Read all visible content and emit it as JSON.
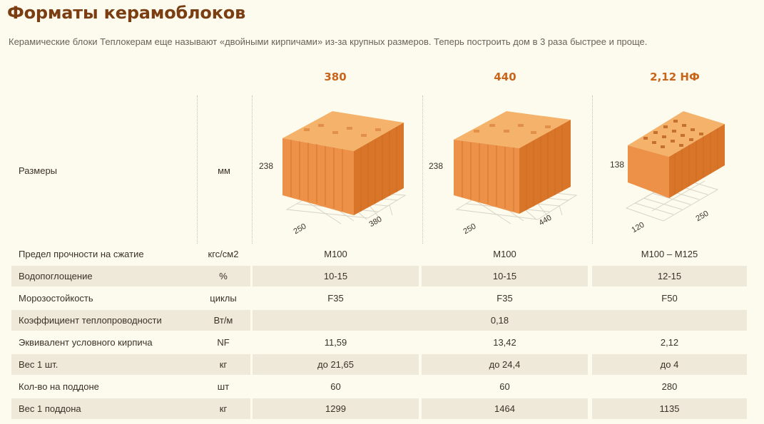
{
  "page": {
    "title": "Форматы керамоблоков",
    "subtitle": "Керамические блоки Теплокерам еще называют «двойными кирпичами» из-за крупных размеров. Теперь построить дом в 3 раза быстрее и проще."
  },
  "columns": [
    "380",
    "440",
    "2,12 НФ"
  ],
  "sizes": {
    "label": "Размеры",
    "unit": "мм",
    "blocks": [
      {
        "height": "238",
        "depth": "250",
        "length": "380"
      },
      {
        "height": "238",
        "depth": "250",
        "length": "440"
      },
      {
        "height": "138",
        "depth": "120",
        "length": "250"
      }
    ]
  },
  "rows": [
    {
      "label": "Предел прочности на сжатие",
      "unit": "кгс/см2",
      "values": [
        "М100",
        "М100",
        "М100 – М125"
      ]
    },
    {
      "label": "Водопоглощение",
      "unit": "%",
      "values": [
        "10-15",
        "10-15",
        "12-15"
      ]
    },
    {
      "label": "Морозостойкость",
      "unit": "циклы",
      "values": [
        "F35",
        "F35",
        "F50"
      ]
    },
    {
      "label": "Коэффициент теплопроводности",
      "unit": "Вт/м",
      "span": "0,18"
    },
    {
      "label": "Эквивалент условного кирпича",
      "unit": "NF",
      "values": [
        "11,59",
        "13,42",
        "2,12"
      ]
    },
    {
      "label": "Вес 1 шт.",
      "unit": "кг",
      "values": [
        "до 21,65",
        "до 24,4",
        "до 4"
      ]
    },
    {
      "label": "Кол-во на поддоне",
      "unit": "шт",
      "values": [
        "60",
        "60",
        "280"
      ]
    },
    {
      "label": "Вес 1 поддона",
      "unit": "кг",
      "values": [
        "1299",
        "1464",
        "1135"
      ]
    }
  ],
  "colors": {
    "title": "#7a3e12",
    "accent": "#c9651a",
    "shade": "#efe9d9",
    "brick": "#e8883a"
  }
}
